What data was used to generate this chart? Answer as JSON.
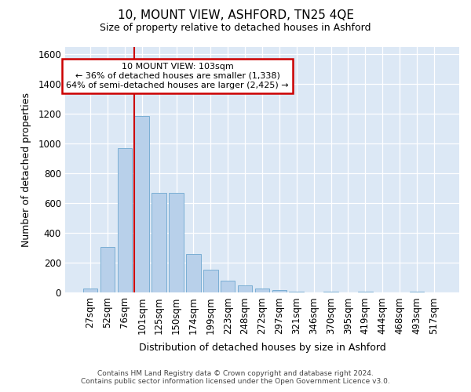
{
  "title": "10, MOUNT VIEW, ASHFORD, TN25 4QE",
  "subtitle": "Size of property relative to detached houses in Ashford",
  "xlabel": "Distribution of detached houses by size in Ashford",
  "ylabel": "Number of detached properties",
  "bar_color": "#b8d0ea",
  "bar_edge_color": "#7aaed4",
  "background_color": "#dce8f5",
  "grid_color": "#ffffff",
  "categories": [
    "27sqm",
    "52sqm",
    "76sqm",
    "101sqm",
    "125sqm",
    "150sqm",
    "174sqm",
    "199sqm",
    "223sqm",
    "248sqm",
    "272sqm",
    "297sqm",
    "321sqm",
    "346sqm",
    "370sqm",
    "395sqm",
    "419sqm",
    "444sqm",
    "468sqm",
    "493sqm",
    "517sqm"
  ],
  "values": [
    30,
    305,
    970,
    1185,
    670,
    670,
    260,
    155,
    80,
    50,
    30,
    20,
    5,
    0,
    5,
    0,
    5,
    0,
    0,
    5,
    0
  ],
  "ylim": [
    0,
    1650
  ],
  "yticks": [
    0,
    200,
    400,
    600,
    800,
    1000,
    1200,
    1400,
    1600
  ],
  "red_line_bin": 3,
  "annotation_text": "10 MOUNT VIEW: 103sqm\n← 36% of detached houses are smaller (1,338)\n64% of semi-detached houses are larger (2,425) →",
  "annotation_box_facecolor": "#ffffff",
  "annotation_box_edgecolor": "#cc0000",
  "red_line_color": "#cc0000",
  "footer_line1": "Contains HM Land Registry data © Crown copyright and database right 2024.",
  "footer_line2": "Contains public sector information licensed under the Open Government Licence v3.0."
}
